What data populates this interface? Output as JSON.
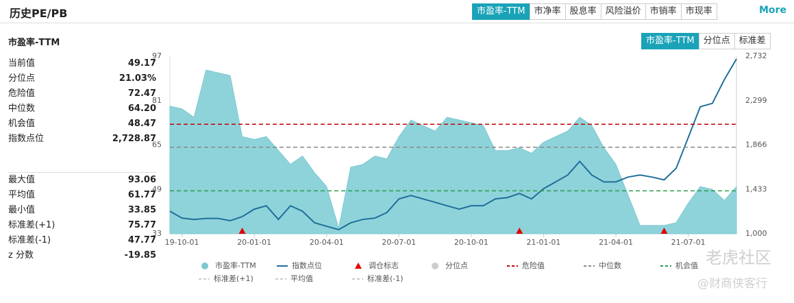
{
  "header": {
    "title": "历史PE/PB",
    "tabs": [
      "市盈率-TTM",
      "市净率",
      "股息率",
      "风险溢价",
      "市销率",
      "市现率"
    ],
    "active_tab": 0,
    "more": "More"
  },
  "panel": {
    "subtitle": "市盈率-TTM",
    "stats1": [
      [
        "当前值",
        "49.17"
      ],
      [
        "分位点",
        "21.03%"
      ],
      [
        "危险值",
        "72.47"
      ],
      [
        "中位数",
        "64.20"
      ],
      [
        "机会值",
        "48.47"
      ],
      [
        "指数点位",
        "2,728.87"
      ]
    ],
    "stats2": [
      [
        "最大值",
        "93.06"
      ],
      [
        "平均值",
        "61.77"
      ],
      [
        "最小值",
        "33.85"
      ],
      [
        "标准差(+1)",
        "75.77"
      ],
      [
        "标准差(-1)",
        "47.77"
      ],
      [
        "z 分数",
        "-19.85"
      ]
    ]
  },
  "sub_tabs": [
    "市盈率-TTM",
    "分位点",
    "标准差"
  ],
  "active_sub_tab": 0,
  "watermarks": [
    "老虎社区",
    "@财商侠客行"
  ],
  "chart_data": {
    "type": "area-line",
    "categories": [
      null,
      "19-10-01",
      null,
      null,
      null,
      null,
      null,
      "20-01-01",
      null,
      null,
      null,
      null,
      null,
      "20-04-01",
      null,
      null,
      null,
      null,
      null,
      "20-07-01",
      null,
      null,
      null,
      null,
      null,
      "20-10-01",
      null,
      null,
      null,
      null,
      null,
      "21-01-01",
      null,
      null,
      null,
      null,
      null,
      "21-04-01",
      null,
      null,
      null,
      null,
      null,
      "21-07-01",
      null,
      null,
      null,
      null
    ],
    "ylim": [
      33,
      97
    ],
    "yticks": [
      33,
      49,
      65,
      81,
      97
    ],
    "y2lim": [
      1000,
      2732
    ],
    "y2ticks": [
      {
        "value": 1000,
        "label": "1,000"
      },
      {
        "value": 1433,
        "label": "1,433"
      },
      {
        "value": 1866,
        "label": "1,866"
      },
      {
        "value": 2299,
        "label": "2,299"
      },
      {
        "value": 2732,
        "label": "2,732"
      }
    ],
    "series": [
      {
        "name": "市盈率-TTM",
        "color": "#8fd3da",
        "kind": "area",
        "values": [
          79,
          78,
          75,
          92,
          91,
          90,
          68,
          67,
          68,
          63,
          58,
          61,
          55,
          50,
          35,
          57,
          58,
          61,
          60,
          68,
          74,
          72,
          70,
          75,
          74,
          73,
          72,
          63,
          63,
          64,
          62,
          66,
          68,
          70,
          75,
          72,
          64,
          58,
          47,
          36,
          36,
          36,
          37,
          44,
          50,
          49,
          45,
          50
        ]
      },
      {
        "name": "指数点位",
        "color": "#1f6f9a",
        "kind": "line",
        "axis": "y2",
        "values": [
          1220,
          1153,
          1140,
          1150,
          1150,
          1127,
          1167,
          1240,
          1273,
          1140,
          1273,
          1220,
          1107,
          1073,
          1040,
          1107,
          1140,
          1153,
          1207,
          1340,
          1373,
          1340,
          1307,
          1273,
          1240,
          1273,
          1273,
          1340,
          1353,
          1393,
          1340,
          1440,
          1506,
          1573,
          1706,
          1573,
          1506,
          1506,
          1553,
          1573,
          1553,
          1526,
          1639,
          1939,
          2239,
          2272,
          2505,
          2705
        ]
      },
      {
        "name": "调仓标志",
        "color": "#e00000",
        "kind": "marker",
        "values": [
          null,
          null,
          null,
          null,
          null,
          null,
          33,
          null,
          null,
          null,
          null,
          null,
          null,
          null,
          null,
          null,
          null,
          null,
          null,
          null,
          null,
          null,
          null,
          null,
          null,
          null,
          null,
          null,
          null,
          33,
          null,
          null,
          null,
          null,
          null,
          null,
          null,
          null,
          null,
          null,
          null,
          33,
          null,
          null,
          null,
          null,
          null,
          null
        ]
      }
    ],
    "hlines": [
      {
        "name": "危险值",
        "color": "#c00000",
        "value": 72.47
      },
      {
        "name": "中位数",
        "color": "#888888",
        "value": 64.2
      },
      {
        "name": "机会值",
        "color": "#2a9d4a",
        "value": 48.47
      }
    ],
    "inactive_legend": [
      {
        "name": "分位点",
        "color": "#cccccc",
        "kind": "circle"
      },
      {
        "name": "标准差(+1)",
        "color": "#cccccc",
        "kind": "dash"
      },
      {
        "name": "平均值",
        "color": "#cccccc",
        "kind": "dash"
      },
      {
        "name": "标准差(-1)",
        "color": "#cccccc",
        "kind": "dash"
      }
    ]
  }
}
